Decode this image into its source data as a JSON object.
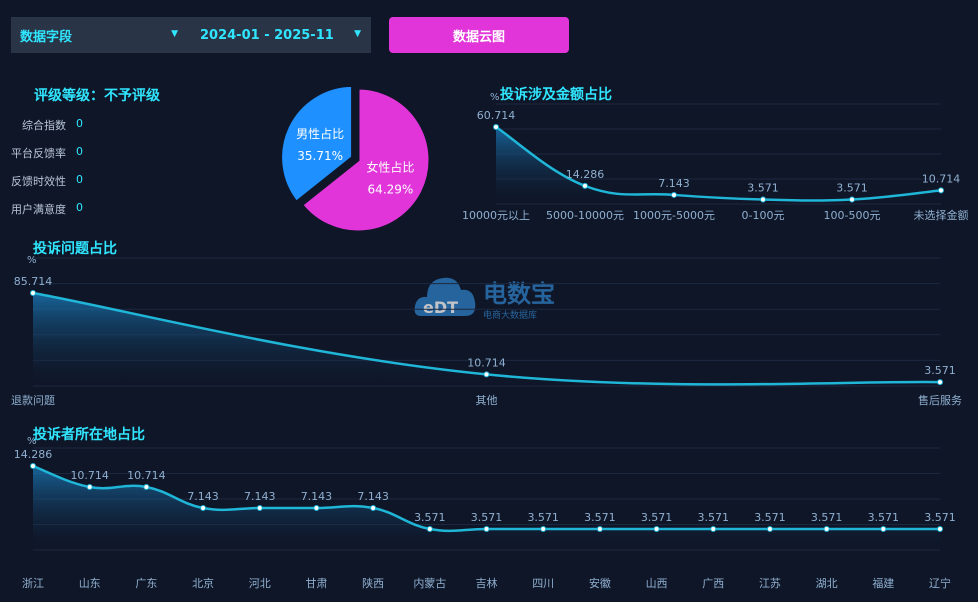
{
  "filters": {
    "field_label": "数据字段",
    "date_range": "2024-01 - 2025-11",
    "cloud_button": "数据云图"
  },
  "rating": {
    "title": "评级等级：不予评级",
    "rows": [
      {
        "label": "综合指数",
        "value": "0"
      },
      {
        "label": "平台反馈率",
        "value": "0"
      },
      {
        "label": "反馈时效性",
        "value": "0"
      },
      {
        "label": "用户满意度",
        "value": "0"
      }
    ]
  },
  "watermark": {
    "brand": "电数宝",
    "logo": "eDT",
    "sub": "电商大数据库"
  },
  "colors": {
    "line": "#1fb6d8",
    "label": "#8fb0d0",
    "male": "#1e90ff",
    "female": "#e135d9",
    "title": "#30e6ff"
  },
  "chart_data": [
    {
      "id": "gender",
      "type": "pie",
      "slices": [
        {
          "label": "男性占比",
          "value": 35.71,
          "display": "35.71%",
          "color": "#1e90ff"
        },
        {
          "label": "女性占比",
          "value": 64.29,
          "display": "64.29%",
          "color": "#e135d9"
        }
      ]
    },
    {
      "id": "amount",
      "type": "area",
      "title": "投诉涉及金额占比",
      "unit": "%",
      "categories": [
        "10000元以上",
        "5000-10000元",
        "1000元-5000元",
        "0-100元",
        "100-500元",
        "未选择金额"
      ],
      "values": [
        60.714,
        14.286,
        7.143,
        3.571,
        3.571,
        10.714
      ],
      "labels": [
        "60.714",
        "14.286",
        "7.143",
        "3.571",
        "3.571",
        "10.714"
      ]
    },
    {
      "id": "issue",
      "type": "area",
      "title": "投诉问题占比",
      "unit": "%",
      "categories": [
        "退款问题",
        "其他",
        "售后服务"
      ],
      "values": [
        85.714,
        10.714,
        3.571
      ],
      "labels": [
        "85.714",
        "10.714",
        "3.571"
      ]
    },
    {
      "id": "region",
      "type": "area",
      "title": "投诉者所在地占比",
      "unit": "%",
      "categories": [
        "浙江",
        "山东",
        "广东",
        "北京",
        "河北",
        "甘肃",
        "陕西",
        "内蒙古",
        "吉林",
        "四川",
        "安徽",
        "山西",
        "广西",
        "江苏",
        "湖北",
        "福建",
        "辽宁"
      ],
      "values": [
        14.286,
        10.714,
        10.714,
        7.143,
        7.143,
        7.143,
        7.143,
        3.571,
        3.571,
        3.571,
        3.571,
        3.571,
        3.571,
        3.571,
        3.571,
        3.571,
        3.571
      ],
      "labels": [
        "14.286",
        "10.714",
        "10.714",
        "7.143",
        "7.143",
        "7.143",
        "7.143",
        "3.571",
        "3.571",
        "3.571",
        "3.571",
        "3.571",
        "3.571",
        "3.571",
        "3.571",
        "3.571",
        "3.571"
      ]
    }
  ]
}
